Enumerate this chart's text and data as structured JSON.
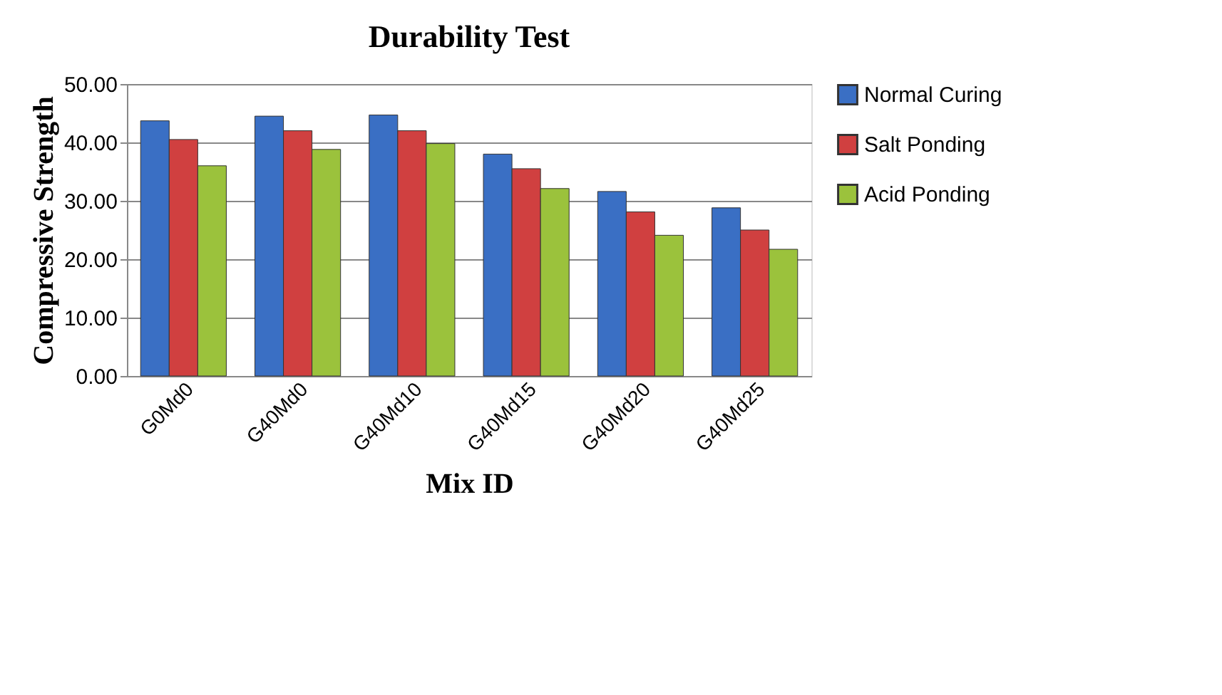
{
  "chart_data": {
    "type": "bar",
    "title": "Durability Test",
    "xlabel": "Mix ID",
    "ylabel": "Compressive Strength",
    "categories": [
      "G0Md0",
      "G40Md0",
      "G40Md10",
      "G40Md15",
      "G40Md20",
      "G40Md25"
    ],
    "series": [
      {
        "name": "Normal Curing",
        "color": "#3a6fc4",
        "values": [
          43.7,
          44.5,
          44.7,
          38.0,
          31.6,
          28.8
        ]
      },
      {
        "name": "Salt Ponding",
        "color": "#d04040",
        "values": [
          40.5,
          42.0,
          42.0,
          35.5,
          28.1,
          25.0
        ]
      },
      {
        "name": "Acid Ponding",
        "color": "#9bc23c",
        "values": [
          36.0,
          38.8,
          39.8,
          32.1,
          24.1,
          21.7
        ]
      }
    ],
    "ylim": [
      0,
      50
    ],
    "yticks": [
      {
        "value": 0,
        "label": "0.00"
      },
      {
        "value": 10,
        "label": "10.00"
      },
      {
        "value": 20,
        "label": "20.00"
      },
      {
        "value": 30,
        "label": "30.00"
      },
      {
        "value": 40,
        "label": "40.00"
      },
      {
        "value": 50,
        "label": "50.00"
      }
    ],
    "grid": "y",
    "legend": "right"
  }
}
